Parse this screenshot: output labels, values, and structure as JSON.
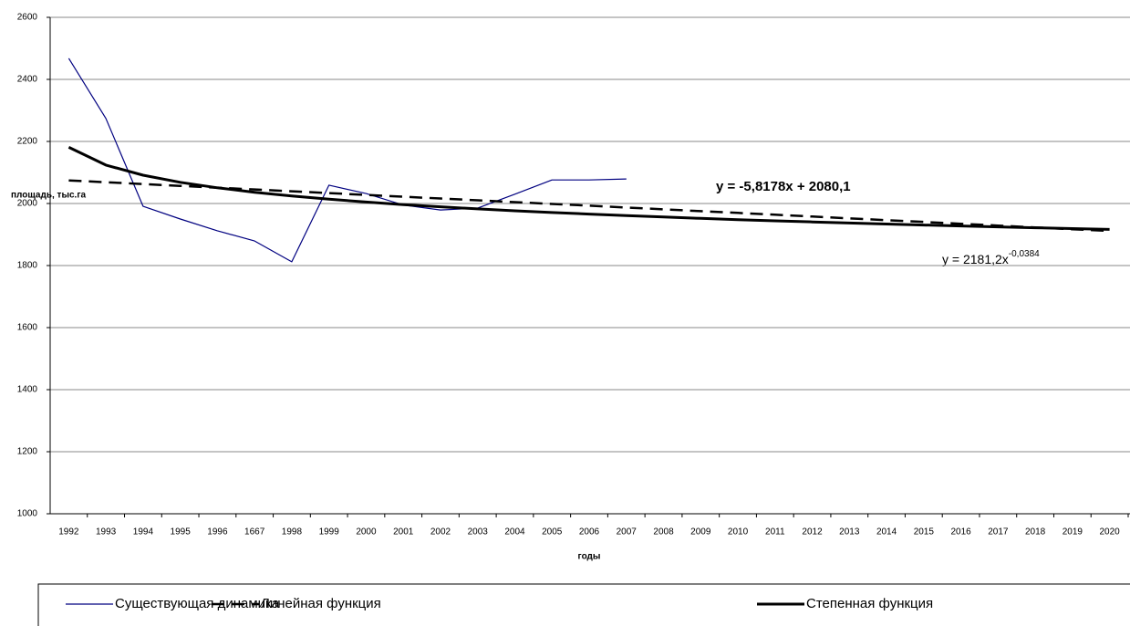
{
  "chart_data": {
    "type": "line",
    "y_label": "площадь, тыс.га",
    "x_label": "годы",
    "categories": [
      "1992",
      "1993",
      "1994",
      "1995",
      "1996",
      "1667",
      "1998",
      "1999",
      "2000",
      "2001",
      "2002",
      "2003",
      "2004",
      "2005",
      "2006",
      "2007",
      "2008",
      "2009",
      "2010",
      "2011",
      "2012",
      "2013",
      "2014",
      "2015",
      "2016",
      "2017",
      "2018",
      "2019",
      "2020"
    ],
    "series": [
      {
        "name": "Существующая динамика",
        "color": "#000080",
        "line_style": "thin",
        "values": [
          2468,
          2274,
          1991,
          1950,
          1912,
          1879,
          1812,
          2059,
          2032,
          1995,
          1979,
          1985,
          2030,
          2076,
          2076,
          2079,
          null,
          null,
          null,
          null,
          null,
          null,
          null,
          null,
          null,
          null,
          null,
          null,
          null
        ]
      },
      {
        "name": "Линейная  функция",
        "color": "#000000",
        "line_style": "dashed",
        "values": [
          2074.3,
          2068.5,
          2062.6,
          2056.8,
          2051.0,
          2045.2,
          2039.4,
          2033.6,
          2027.7,
          2021.9,
          2016.1,
          2010.3,
          2004.5,
          1998.6,
          1992.8,
          1987.0,
          1981.2,
          1975.4,
          1969.6,
          1963.7,
          1957.9,
          1952.1,
          1946.3,
          1940.5,
          1934.6,
          1928.8,
          1923.0,
          1917.2,
          1911.4
        ]
      },
      {
        "name": "Степенная функция",
        "color": "#000000",
        "line_style": "thick",
        "values": [
          2181.2,
          2123.9,
          2091.1,
          2068.1,
          2050.5,
          2036.2,
          2024.2,
          2013.8,
          2004.7,
          1996.6,
          1989.3,
          1982.7,
          1976.6,
          1971.0,
          1965.8,
          1960.9,
          1956.4,
          1952.0,
          1948.0,
          1944.1,
          1940.5,
          1937.1,
          1933.8,
          1930.6,
          1927.6,
          1924.7,
          1921.9,
          1919.2,
          1916.6
        ]
      }
    ],
    "annotations": [
      {
        "text": "y = -5,8178x + 2080,1"
      },
      {
        "text": "y = 2181,2x",
        "superscript": "-0,0384"
      }
    ],
    "ylim": [
      1000,
      2600
    ],
    "yticks": [
      1000,
      1200,
      1400,
      1600,
      1800,
      2000,
      2200,
      2400,
      2600
    ],
    "grid": true
  }
}
